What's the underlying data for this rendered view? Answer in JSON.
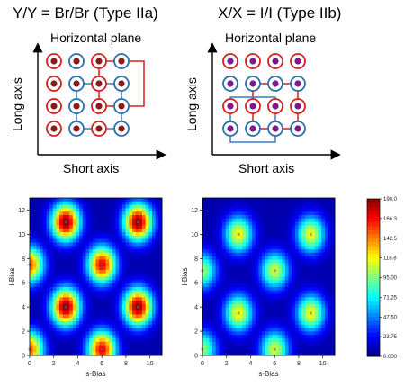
{
  "panels": {
    "left": {
      "title": "Y/Y = Br/Br (Type IIa)",
      "plane": "Horizontal plane",
      "xlabel": "Short axis",
      "ylabel": "Long axis",
      "atom_color": "#8b1a1a",
      "rows": 4,
      "cols": 4,
      "ring_pattern": "alternating-columns"
    },
    "right": {
      "title": "X/X = I/I (Type IIb)",
      "plane": "Horizontal plane",
      "xlabel": "Short axis",
      "ylabel": "Long axis",
      "atom_color": "#7b1a8c",
      "rows": 4,
      "cols": 4,
      "ring_pattern": "alternating-rows"
    }
  },
  "colors": {
    "red_ring": "#d42020",
    "blue_ring": "#2a6fb0"
  },
  "chart_data": [
    {
      "type": "heatmap",
      "title": "",
      "xlabel": "s-Bias",
      "ylabel": "l-Bias",
      "xlim": [
        0,
        11
      ],
      "ylim": [
        0,
        13
      ],
      "xticks": [
        "0",
        "2",
        "4",
        "6",
        "8",
        "10"
      ],
      "yticks": [
        "0",
        "2",
        "4",
        "6",
        "8",
        "10",
        "12"
      ],
      "peaks": [
        {
          "x": 3,
          "y": 11,
          "v": 190
        },
        {
          "x": 9,
          "y": 11,
          "v": 190
        },
        {
          "x": 6,
          "y": 7.5,
          "v": 170
        },
        {
          "x": 0,
          "y": 7.5,
          "v": 150
        },
        {
          "x": 3,
          "y": 4,
          "v": 190
        },
        {
          "x": 9,
          "y": 4,
          "v": 190
        },
        {
          "x": 6,
          "y": 0.5,
          "v": 170
        },
        {
          "x": 0,
          "y": 0.5,
          "v": 150
        }
      ]
    },
    {
      "type": "heatmap",
      "title": "",
      "xlabel": "s-Bias",
      "ylabel": "l-Bias",
      "xlim": [
        0,
        11
      ],
      "ylim": [
        0,
        13
      ],
      "xticks": [
        "0",
        "2",
        "4",
        "6",
        "8",
        "10"
      ],
      "yticks": [
        "0",
        "2",
        "4",
        "6",
        "8",
        "10",
        "12"
      ],
      "peaks": [
        {
          "x": 3,
          "y": 10,
          "v": 118
        },
        {
          "x": 9,
          "y": 10,
          "v": 118
        },
        {
          "x": 6,
          "y": 7,
          "v": 110
        },
        {
          "x": 0,
          "y": 7,
          "v": 100
        },
        {
          "x": 3,
          "y": 3.5,
          "v": 118
        },
        {
          "x": 9,
          "y": 3.5,
          "v": 118
        },
        {
          "x": 6,
          "y": 0.5,
          "v": 110
        },
        {
          "x": 0,
          "y": 0.5,
          "v": 100
        }
      ]
    }
  ],
  "colorbar": {
    "ticks": [
      "190.0",
      "166.3",
      "142.5",
      "118.8",
      "95.00",
      "71.25",
      "47.50",
      "23.75",
      "0.000"
    ],
    "range": [
      0,
      190
    ]
  }
}
